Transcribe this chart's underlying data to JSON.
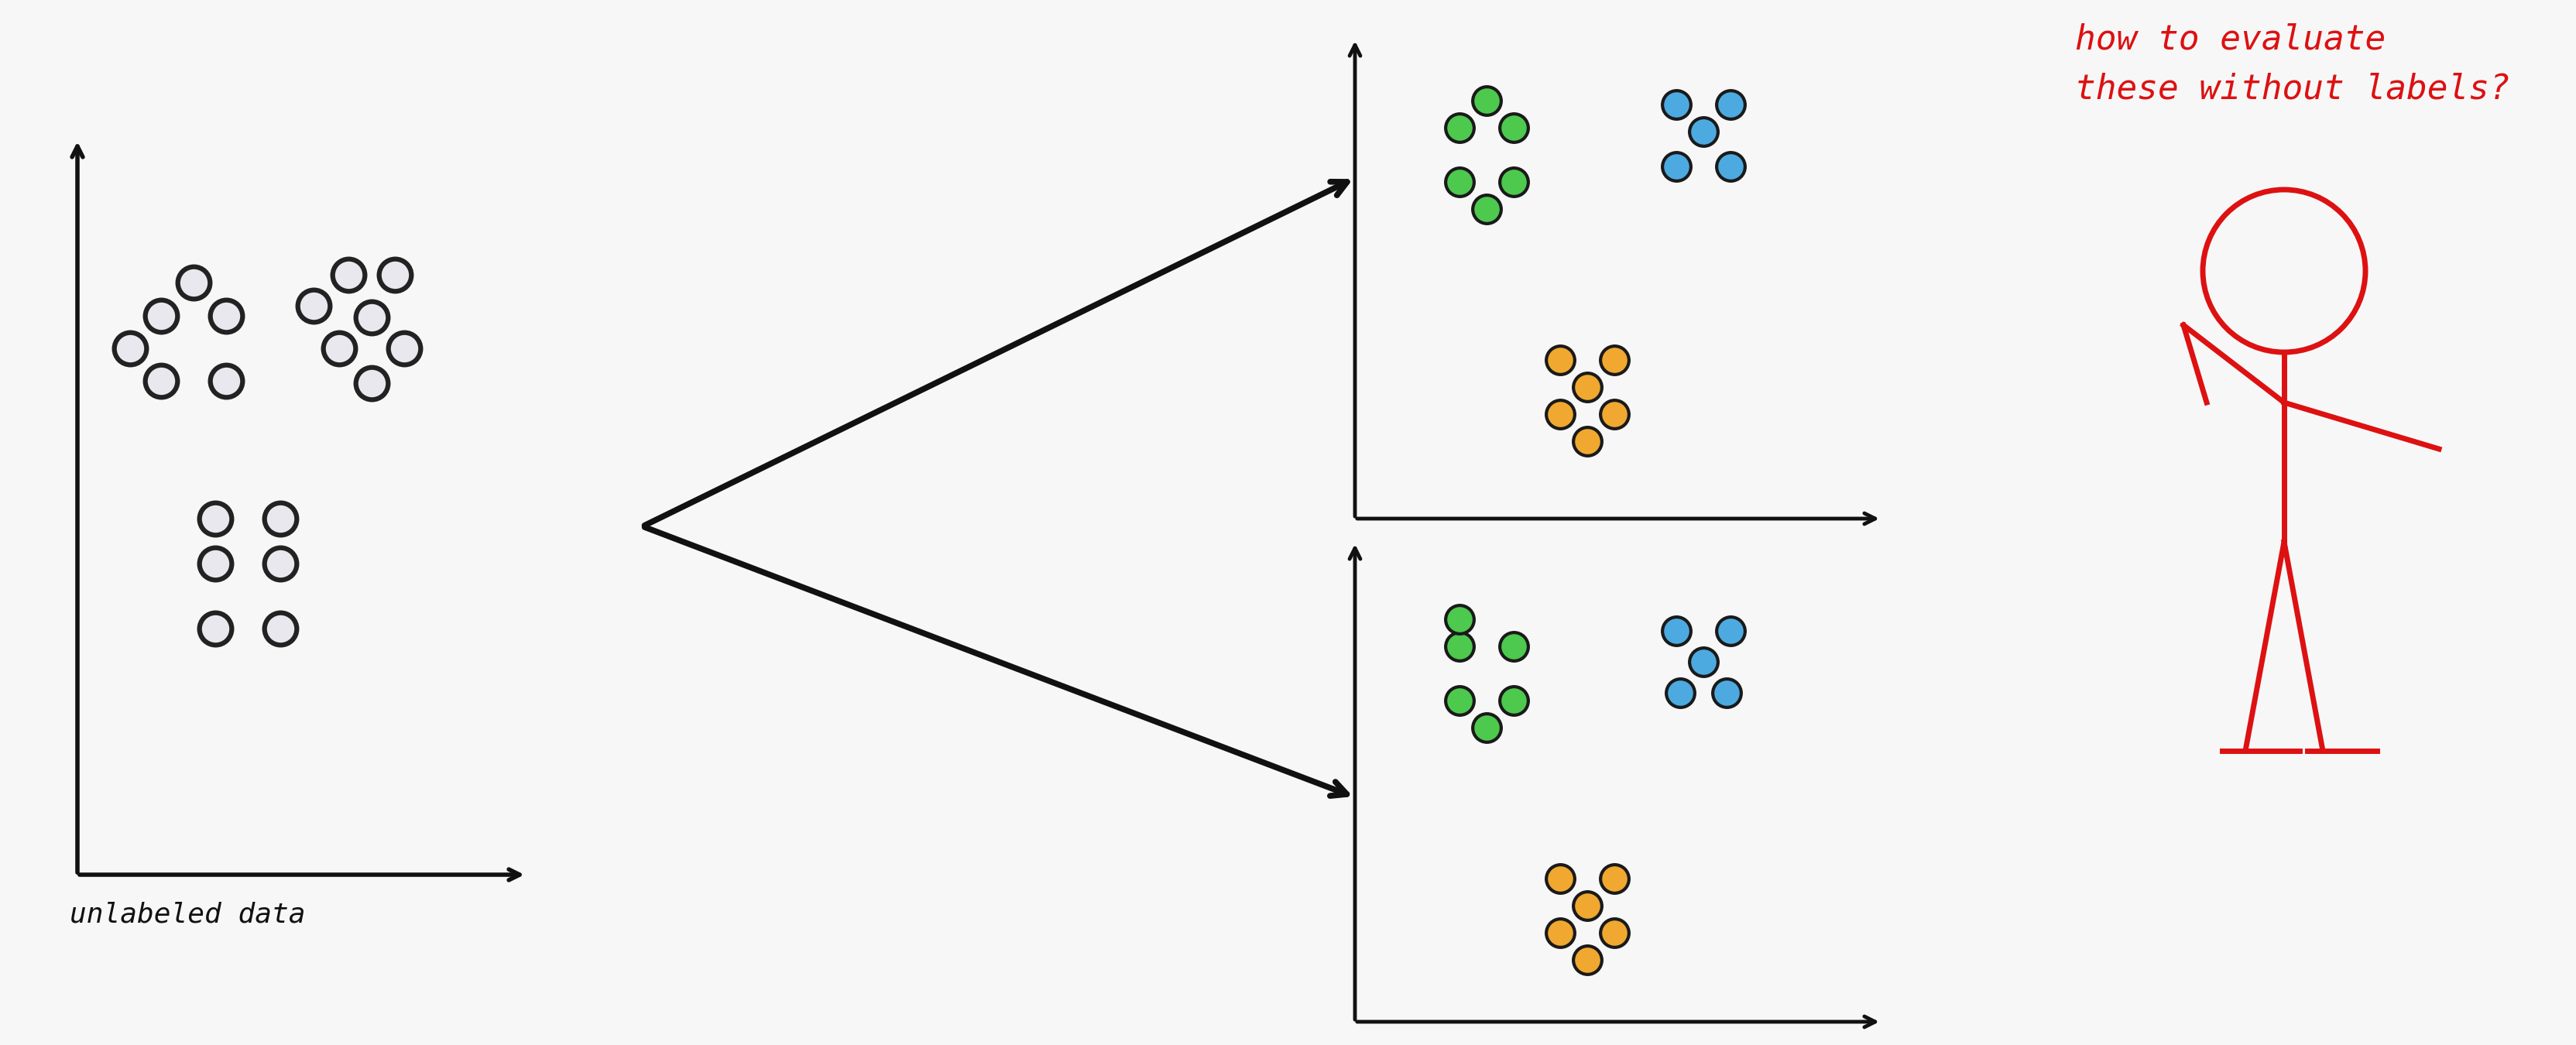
{
  "bg_color": "#f7f7f8",
  "dot_color_unlabeled": "#e8e8ee",
  "dot_edge_unlabeled": "#222222",
  "dot_color_green": "#4dc94d",
  "dot_color_blue": "#4daae0",
  "dot_color_orange": "#f0a830",
  "arrow_color": "#111111",
  "axis_color": "#111111",
  "text_color_label": "#111111",
  "text_color_question": "#dd1111",
  "unlabeled_label": "unlabeled data",
  "question_text": "how to evaluate\nthese without labels?",
  "dot_size_unlabeled": 900,
  "dot_size_colored": 700,
  "dot_lw_unlabeled": 4.5,
  "dot_lw_colored": 3.0
}
